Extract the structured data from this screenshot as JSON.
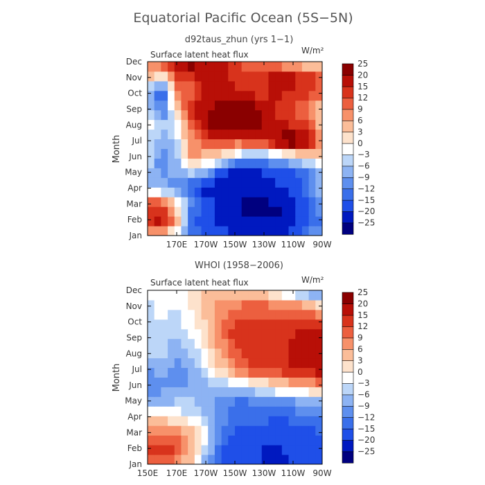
{
  "figure": {
    "title": "Equatorial Pacific Ocean (5S−5N)"
  },
  "colorbar": {
    "colors": [
      "#00007f",
      "#0019c0",
      "#1f4fe8",
      "#3a6fea",
      "#5e8fee",
      "#8db3f3",
      "#bcd6f8",
      "#ffffff",
      "#fde2cc",
      "#fbbd99",
      "#f7916a",
      "#ec5f3f",
      "#d8331c",
      "#b80f07",
      "#8a0000"
    ],
    "labels": [
      "−25",
      "−20",
      "−15",
      "−12",
      "−9",
      "−6",
      "−3",
      "0",
      "3",
      "6",
      "9",
      "12",
      "15",
      "20",
      "25"
    ],
    "levels": [
      -25,
      -20,
      -15,
      -12,
      -9,
      -6,
      -3,
      0,
      3,
      6,
      9,
      12,
      15,
      20,
      25
    ]
  },
  "chart_data": [
    {
      "type": "heatmap",
      "subtitle": "d92taus_zhun (yrs 1−1)",
      "variable_label": "Surface latent heat flux",
      "units_label": "W/m²",
      "ylabel": "Month",
      "months": [
        "Jan",
        "Feb",
        "Mar",
        "Apr",
        "May",
        "Jun",
        "Jul",
        "Aug",
        "Sep",
        "Oct",
        "Nov",
        "Dec"
      ],
      "x_ticks": [
        "",
        "170E",
        "170W",
        "150W",
        "130W",
        "110W",
        "90W"
      ],
      "x_range_deg_east": [
        150,
        270
      ],
      "values_by_month_at_150E_to_90W": [
        [
          5,
          3,
          -5,
          -12,
          -15,
          -18,
          -20,
          -22,
          -22,
          -22,
          -18,
          -10,
          -8
        ],
        [
          14,
          18,
          6,
          -15,
          -18,
          -22,
          -25,
          -25,
          -25,
          -25,
          -22,
          -15,
          -12
        ],
        [
          16,
          10,
          2,
          -10,
          -18,
          -22,
          -24,
          -26,
          -26,
          -25,
          -22,
          -15,
          -10
        ],
        [
          -6,
          -8,
          -10,
          -16,
          -22,
          -24,
          -24,
          -22,
          -22,
          -20,
          -18,
          -12,
          -6
        ],
        [
          -5,
          -10,
          -8,
          -5,
          -8,
          -16,
          -22,
          -22,
          -20,
          -18,
          -15,
          -12,
          -5
        ],
        [
          -4,
          -12,
          -6,
          6,
          4,
          2,
          -4,
          -10,
          -8,
          -6,
          -3,
          0,
          2
        ],
        [
          -3,
          -8,
          -4,
          8,
          12,
          12,
          12,
          14,
          16,
          22,
          26,
          20,
          6
        ],
        [
          -2,
          -6,
          -2,
          10,
          18,
          24,
          26,
          24,
          18,
          16,
          14,
          12,
          4
        ],
        [
          -3,
          -14,
          4,
          14,
          18,
          26,
          28,
          26,
          18,
          14,
          12,
          10,
          2
        ],
        [
          -6,
          -18,
          8,
          10,
          16,
          18,
          16,
          14,
          14,
          16,
          14,
          12,
          10
        ],
        [
          4,
          -2,
          12,
          14,
          16,
          18,
          14,
          14,
          14,
          18,
          16,
          14,
          12
        ],
        [
          6,
          14,
          18,
          24,
          20,
          16,
          12,
          10,
          8,
          6,
          4,
          2,
          0
        ]
      ]
    },
    {
      "type": "heatmap",
      "subtitle": "WHOI (1958−2006)",
      "variable_label": "Surface latent heat flux",
      "units_label": "W/m²",
      "ylabel": "Month",
      "months": [
        "Jan",
        "Feb",
        "Mar",
        "Apr",
        "May",
        "Jun",
        "Jul",
        "Aug",
        "Sep",
        "Oct",
        "Nov",
        "Dec"
      ],
      "x_ticks": [
        "150E",
        "170E",
        "170W",
        "150W",
        "130W",
        "110W",
        "90W"
      ],
      "x_range_deg_east": [
        150,
        270
      ],
      "values_by_month_at_150E_to_90W": [
        [
          8,
          10,
          6,
          2,
          -12,
          -16,
          -18,
          -18,
          -20,
          -22,
          -20,
          -18,
          -18
        ],
        [
          12,
          15,
          12,
          6,
          -3,
          -14,
          -18,
          -20,
          -20,
          -20,
          -18,
          -17,
          -16
        ],
        [
          10,
          10,
          8,
          4,
          -2,
          -12,
          -16,
          -16,
          -16,
          -18,
          -17,
          -16,
          -14
        ],
        [
          3,
          2,
          0,
          -3,
          -6,
          -10,
          -13,
          -14,
          -14,
          -15,
          -14,
          -13,
          -12
        ],
        [
          -8,
          -7,
          -6,
          -6,
          -8,
          -10,
          -12,
          -12,
          -11,
          -10,
          -9,
          -8,
          -8
        ],
        [
          -12,
          -10,
          -10,
          -9,
          -8,
          -6,
          -4,
          -2,
          -1,
          2,
          4,
          6,
          8
        ],
        [
          -9,
          -8,
          -11,
          -8,
          -3,
          3,
          8,
          12,
          12,
          14,
          16,
          17,
          17
        ],
        [
          -6,
          -5,
          -9,
          -6,
          -1,
          6,
          10,
          13,
          14,
          14,
          16,
          18,
          18
        ],
        [
          -5,
          -4,
          -7,
          -3,
          2,
          8,
          14,
          15,
          15,
          14,
          16,
          20,
          18
        ],
        [
          -4,
          -3,
          -4,
          -1,
          3,
          8,
          12,
          13,
          13,
          12,
          12,
          14,
          13
        ],
        [
          -4,
          -2,
          -3,
          0,
          4,
          8,
          9,
          10,
          10,
          9,
          8,
          6,
          2
        ],
        [
          -2,
          -1,
          0,
          1,
          3,
          4,
          4,
          3,
          2,
          -2,
          -6,
          -10,
          -14
        ]
      ]
    }
  ]
}
